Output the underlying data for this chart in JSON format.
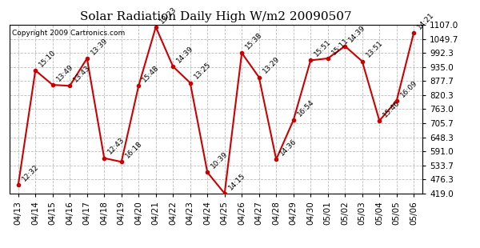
{
  "title": "Solar Radiation Daily High W/m2 20090507",
  "copyright": "Copyright 2009 Cartronics.com",
  "dates": [
    "04/13",
    "04/14",
    "04/15",
    "04/16",
    "04/17",
    "04/18",
    "04/19",
    "04/20",
    "04/21",
    "04/22",
    "04/23",
    "04/24",
    "04/25",
    "04/26",
    "04/27",
    "04/28",
    "04/29",
    "04/30",
    "05/01",
    "05/02",
    "05/03",
    "05/04",
    "05/05",
    "05/06"
  ],
  "values": [
    453,
    921,
    862,
    858,
    970,
    563,
    548,
    858,
    1098,
    937,
    870,
    505,
    419,
    992,
    893,
    558,
    718,
    962,
    970,
    1020,
    958,
    716,
    797,
    1075
  ],
  "labels": [
    "12:32",
    "15:10",
    "13:49",
    "13:43",
    "13:39",
    "12:43",
    "16:18",
    "15:48",
    "13:23",
    "14:39",
    "13:25",
    "10:39",
    "14:15",
    "15:38",
    "13:29",
    "14:36",
    "16:54",
    "15:51",
    "15:11",
    "14:39",
    "13:51",
    "15:46",
    "16:09",
    "14:21"
  ],
  "ylim": [
    419.0,
    1107.0
  ],
  "yticks": [
    419.0,
    476.3,
    533.7,
    591.0,
    648.3,
    705.7,
    763.0,
    820.3,
    877.7,
    935.0,
    992.3,
    1049.7,
    1107.0
  ],
  "line_color": "#cc0000",
  "marker_color": "#cc0000",
  "bg_color": "#ffffff",
  "grid_color": "#bbbbbb",
  "title_fontsize": 11,
  "label_fontsize": 6.5,
  "tick_fontsize": 7.5
}
